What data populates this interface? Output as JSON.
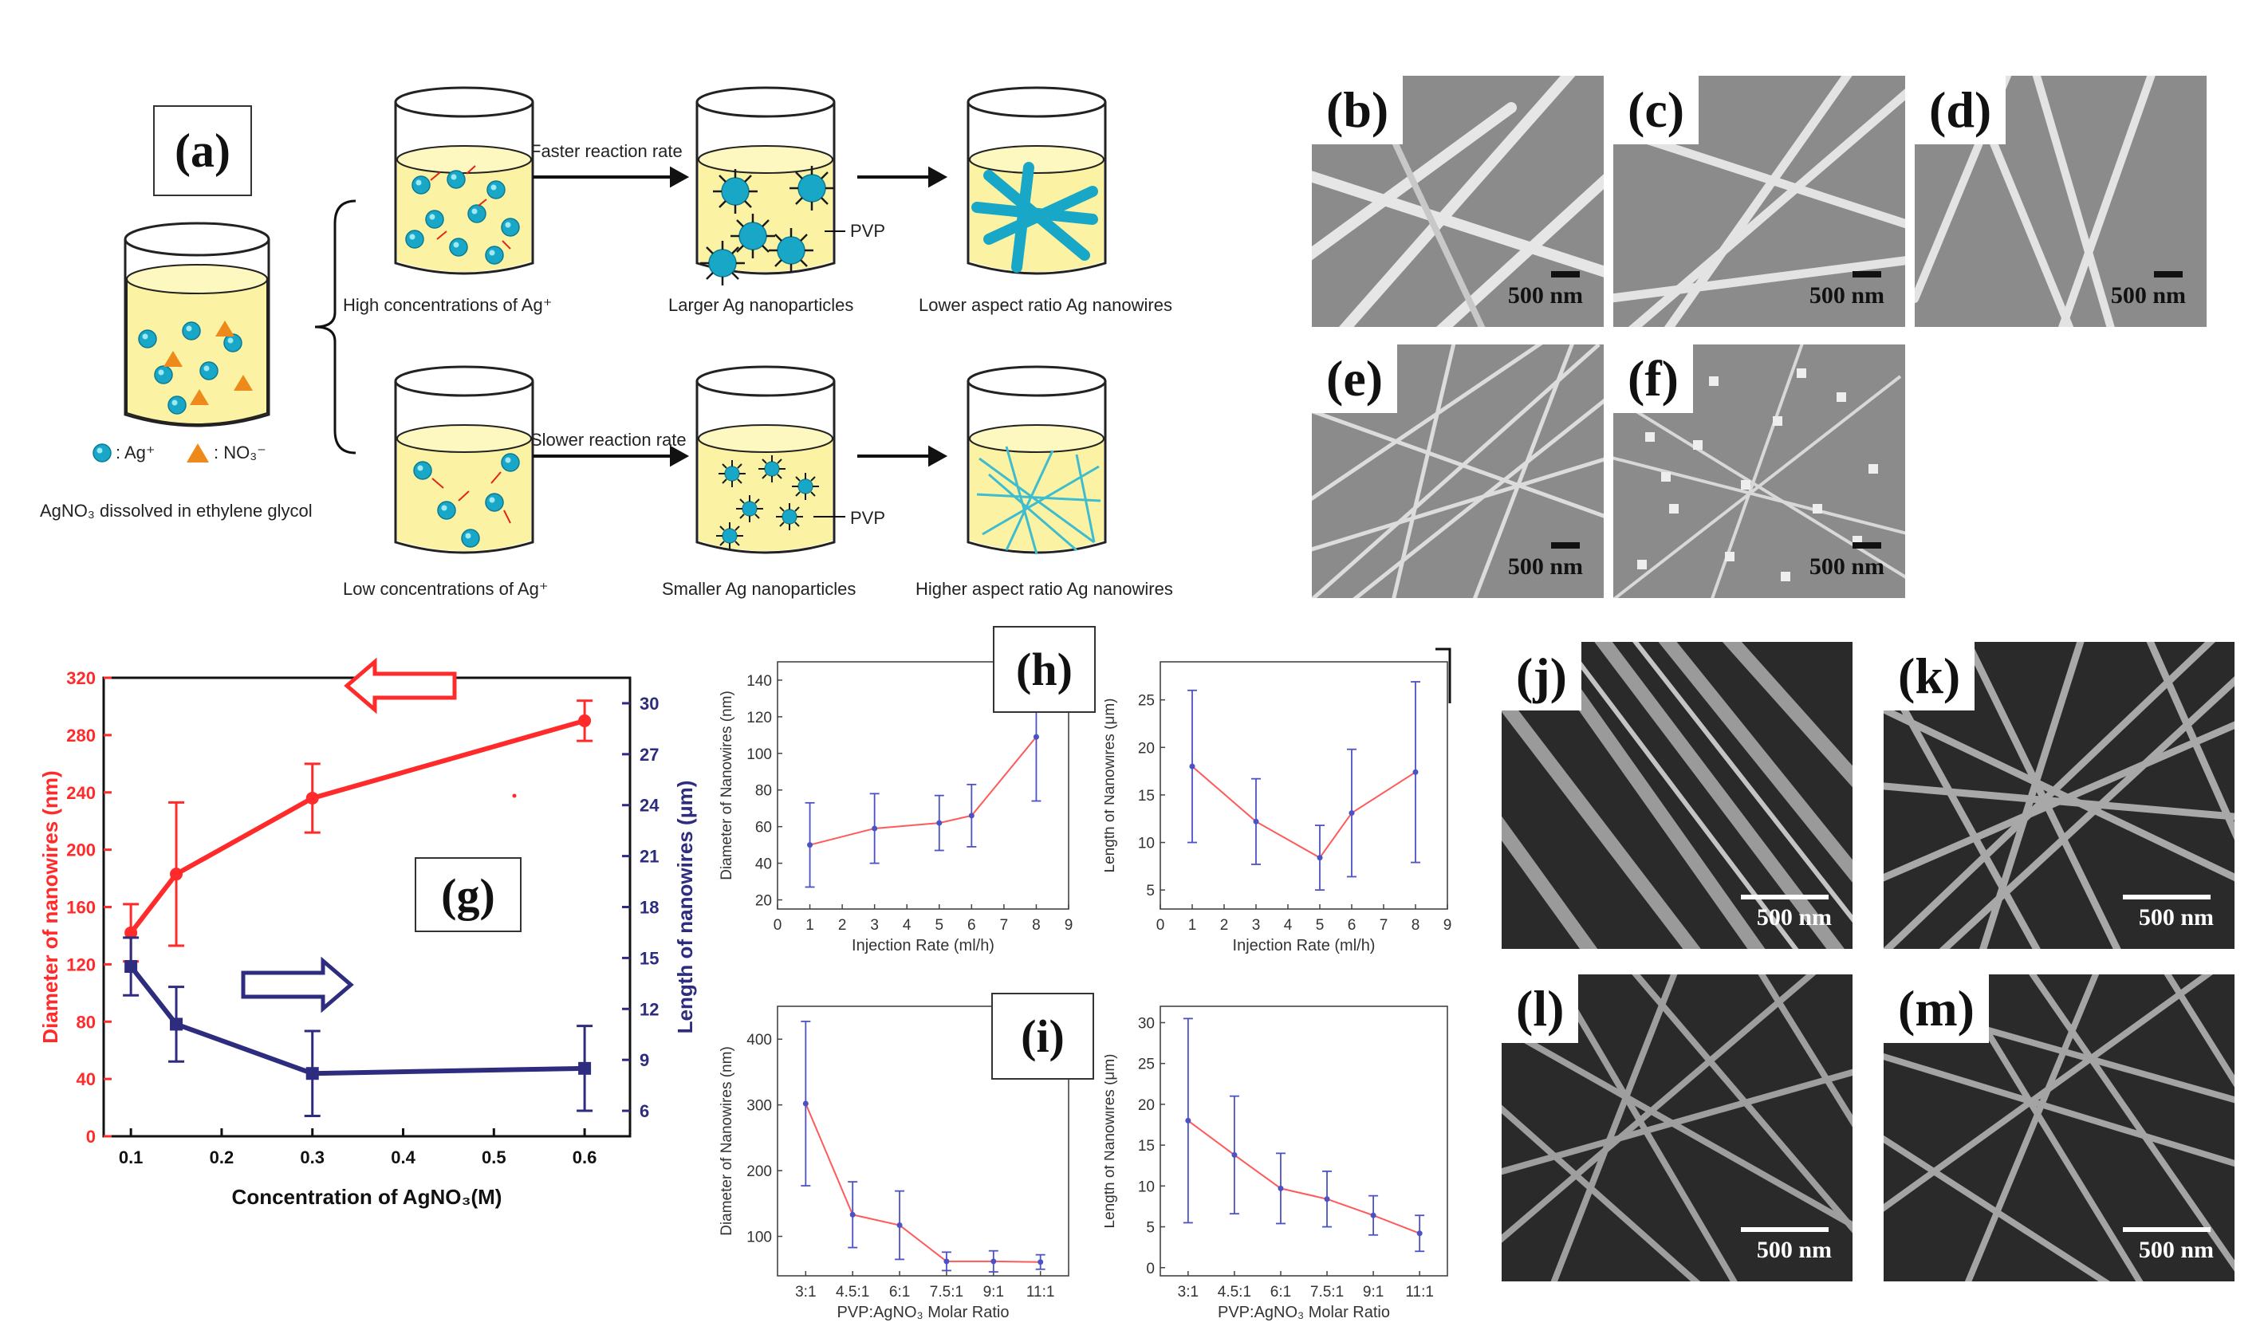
{
  "panel_a": {
    "label": "(a)",
    "legend_ag": ": Ag⁺",
    "legend_no3": ": NO₃⁻",
    "source_caption": "AgNO₃ dissolved in ethylene glycol",
    "top_arrow": "Faster reaction rate",
    "bottom_arrow": "Slower reaction rate",
    "pvp_top": "PVP",
    "pvp_bottom": "PVP",
    "top_captions": [
      "High concentrations of Ag⁺",
      "Larger Ag nanoparticles",
      "Lower aspect ratio Ag nanowires"
    ],
    "bottom_captions": [
      "Low concentrations of Ag⁺",
      "Smaller Ag nanoparticles",
      "Higher aspect ratio Ag nanowires"
    ]
  },
  "sem_top": [
    {
      "label": "(b)",
      "scale": "500 nm"
    },
    {
      "label": "(c)",
      "scale": "500 nm"
    },
    {
      "label": "(d)",
      "scale": "500 nm"
    },
    {
      "label": "(e)",
      "scale": "500 nm"
    },
    {
      "label": "(f)",
      "scale": "500 nm"
    }
  ],
  "sem_bottom": [
    {
      "label": "(j)",
      "scale": "500 nm"
    },
    {
      "label": "(k)",
      "scale": "500 nm"
    },
    {
      "label": "(l)",
      "scale": "500 nm"
    },
    {
      "label": "(m)",
      "scale": "500 nm"
    }
  ],
  "labels": {
    "g": "(g)",
    "h": "(h)",
    "i": "(i)"
  },
  "chart_data": [
    {
      "id": "g",
      "type": "line",
      "xlabel": "Concentration of AgNO₃(M)",
      "ylabel_left": "Diameter of nanowires (nm)",
      "ylabel_right": "Length of nanowires (μm)",
      "x": [
        0.1,
        0.15,
        0.3,
        0.6
      ],
      "xlim": [
        0.07,
        0.65
      ],
      "xticks": [
        0.1,
        0.2,
        0.3,
        0.4,
        0.5,
        0.6
      ],
      "ylim_left": [
        0,
        320
      ],
      "yticks_left": [
        0,
        40,
        80,
        120,
        160,
        200,
        240,
        280,
        320
      ],
      "ylim_right": [
        4.5,
        31.5
      ],
      "yticks_right": [
        6,
        9,
        12,
        15,
        18,
        21,
        24,
        27,
        30
      ],
      "series": [
        {
          "name": "Diameter",
          "axis": "left",
          "color": "#ff2a2a",
          "values": [
            142,
            183,
            236,
            290
          ],
          "errors": [
            20,
            50,
            24,
            14
          ]
        },
        {
          "name": "Length",
          "axis": "right",
          "color": "#2e2c7e",
          "values": [
            14.5,
            11.1,
            8.2,
            8.5
          ],
          "errors": [
            1.7,
            2.2,
            2.5,
            2.5
          ]
        }
      ]
    },
    {
      "id": "h-left",
      "type": "line",
      "xlabel": "Injection Rate (ml/h)",
      "ylabel": "Diameter of Nanowires (nm)",
      "x": [
        1,
        3,
        5,
        6,
        8
      ],
      "xlim": [
        0,
        9
      ],
      "xticks": [
        0,
        1,
        2,
        3,
        4,
        5,
        6,
        7,
        8,
        9
      ],
      "ylim": [
        15,
        150
      ],
      "yticks": [
        20,
        40,
        60,
        80,
        100,
        120,
        140
      ],
      "series": [
        {
          "name": "Diameter",
          "values": [
            50,
            59,
            62,
            66,
            109
          ],
          "errors": [
            23,
            19,
            15,
            17,
            35
          ]
        }
      ]
    },
    {
      "id": "h-right",
      "type": "line",
      "xlabel": "Injection Rate (ml/h)",
      "ylabel": "Length of Nanowires (μm)",
      "x": [
        1,
        3,
        5,
        6,
        8
      ],
      "xlim": [
        0,
        9
      ],
      "xticks": [
        0,
        1,
        2,
        3,
        4,
        5,
        6,
        7,
        8,
        9
      ],
      "ylim": [
        3,
        29
      ],
      "yticks": [
        5,
        10,
        15,
        20,
        25
      ],
      "series": [
        {
          "name": "Length",
          "values": [
            18,
            12.2,
            8.4,
            13.1,
            17.4
          ],
          "errors": [
            8,
            4.5,
            3.4,
            6.7,
            9.5
          ]
        }
      ]
    },
    {
      "id": "i-left",
      "type": "line",
      "xlabel": "PVP:AgNO₃ Molar Ratio",
      "ylabel": "Diameter of Nanowires (nm)",
      "categories": [
        "3:1",
        "4.5:1",
        "6:1",
        "7.5:1",
        "9:1",
        "11:1"
      ],
      "ylim": [
        40,
        450
      ],
      "yticks": [
        100,
        200,
        300,
        400
      ],
      "series": [
        {
          "name": "Diameter",
          "values": [
            302,
            133,
            117,
            62,
            62,
            61
          ],
          "errors": [
            125,
            50,
            52,
            14,
            16,
            11
          ]
        }
      ]
    },
    {
      "id": "i-right",
      "type": "line",
      "xlabel": "PVP:AgNO₃ Molar Ratio",
      "ylabel": "Length of Nanowires (μm)",
      "categories": [
        "3:1",
        "4.5:1",
        "6:1",
        "7.5:1",
        "9:1",
        "11:1"
      ],
      "ylim": [
        -1,
        32
      ],
      "yticks": [
        0,
        5,
        10,
        15,
        20,
        25,
        30
      ],
      "series": [
        {
          "name": "Length",
          "values": [
            18,
            13.8,
            9.7,
            8.4,
            6.4,
            4.2
          ],
          "errors": [
            12.5,
            7.2,
            4.3,
            3.4,
            2.4,
            2.2
          ]
        }
      ]
    }
  ]
}
